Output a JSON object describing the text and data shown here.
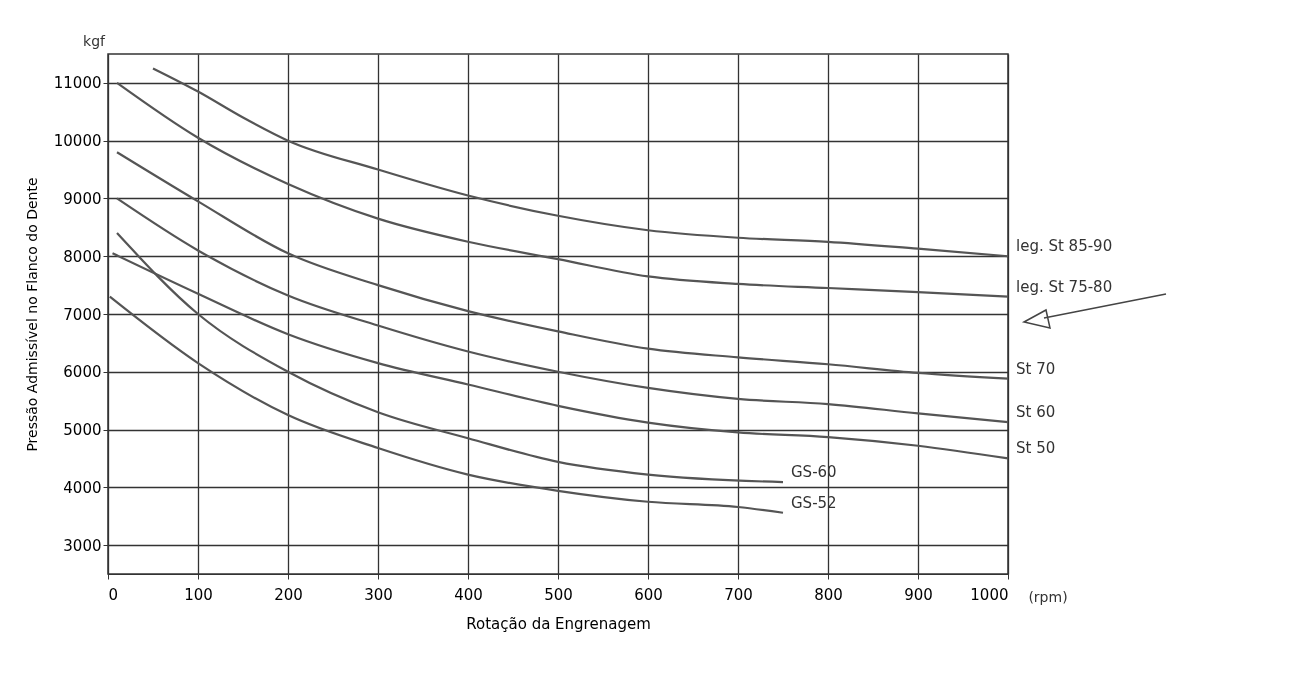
{
  "chart_data": {
    "type": "line",
    "xlabel": "Rotação da Engrenagem",
    "ylabel": "Pressão Admissível no Flanco do Dente",
    "annotations": [
      "kgf",
      "(rpm)"
    ],
    "xlim": [
      0,
      1000
    ],
    "xticks": [
      0,
      100,
      200,
      300,
      400,
      500,
      600,
      700,
      800,
      900,
      1000
    ],
    "ylim": [
      2500,
      11500
    ],
    "yticks": [
      3000,
      4000,
      5000,
      6000,
      7000,
      8000,
      9000,
      10000,
      11000
    ],
    "grid": true,
    "legend": false,
    "marker": "none",
    "line_style": "solid",
    "series": [
      {
        "name": "leg. St 85-90",
        "color": "#555555",
        "x": [
          50,
          100,
          150,
          200,
          300,
          400,
          500,
          600,
          700,
          800,
          900,
          1000
        ],
        "values": [
          11250,
          10850,
          10400,
          10000,
          9500,
          9050,
          8700,
          8450,
          8320,
          8250,
          8130,
          8000
        ]
      },
      {
        "name": "leg. St 75-80",
        "color": "#555555",
        "x": [
          10,
          100,
          200,
          300,
          400,
          500,
          600,
          700,
          800,
          900,
          1000
        ],
        "values": [
          11000,
          10050,
          9250,
          8650,
          8250,
          7950,
          7650,
          7520,
          7450,
          7380,
          7300
        ]
      },
      {
        "name": "St 70",
        "color": "#555555",
        "x": [
          10,
          100,
          200,
          300,
          400,
          500,
          600,
          700,
          800,
          900,
          1000
        ],
        "values": [
          9800,
          8950,
          8050,
          7500,
          7050,
          6700,
          6400,
          6250,
          6130,
          5980,
          5880
        ]
      },
      {
        "name": "St 60",
        "color": "#555555",
        "x": [
          10,
          100,
          200,
          300,
          400,
          500,
          600,
          700,
          800,
          900,
          1000
        ],
        "values": [
          9000,
          8100,
          7320,
          6800,
          6350,
          6000,
          5720,
          5530,
          5440,
          5280,
          5130
        ]
      },
      {
        "name": "St 50",
        "color": "#555555",
        "x": [
          5,
          100,
          200,
          300,
          400,
          500,
          600,
          700,
          800,
          900,
          1000
        ],
        "values": [
          8050,
          7350,
          6650,
          6150,
          5780,
          5410,
          5120,
          4950,
          4870,
          4720,
          4500
        ]
      },
      {
        "name": "GS-60",
        "color": "#555555",
        "x": [
          10,
          100,
          200,
          300,
          400,
          500,
          600,
          750
        ],
        "values": [
          8400,
          7000,
          6000,
          5300,
          4850,
          4440,
          4220,
          4090
        ]
      },
      {
        "name": "GS-52",
        "color": "#555555",
        "x": [
          2,
          100,
          200,
          300,
          400,
          500,
          600,
          700,
          750
        ],
        "values": [
          7300,
          6150,
          5250,
          4680,
          4220,
          3940,
          3750,
          3660,
          3560
        ]
      }
    ]
  }
}
